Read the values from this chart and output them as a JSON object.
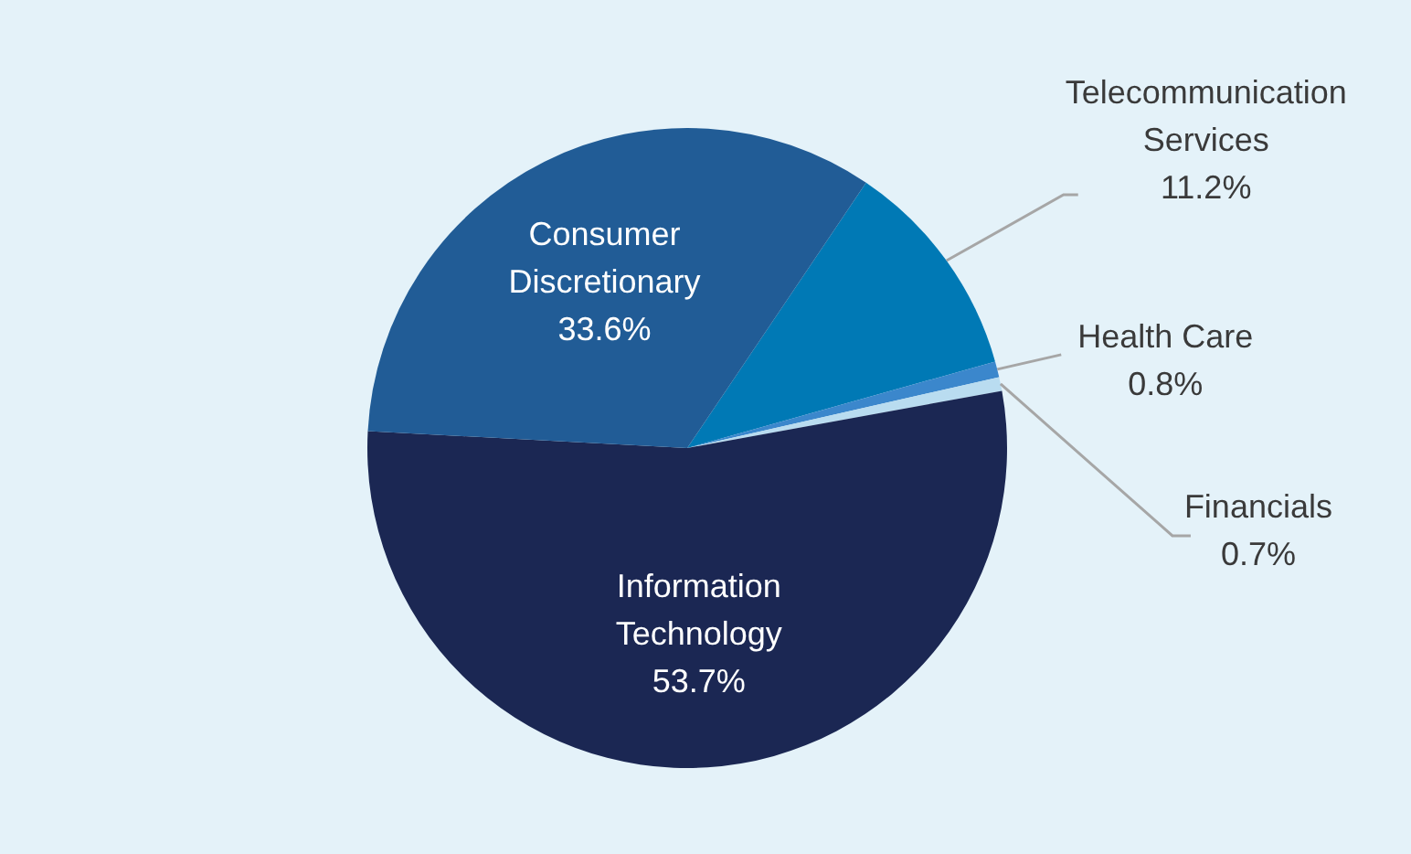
{
  "chart_data": {
    "type": "pie",
    "categories": [
      "Telecommunication Services",
      "Health Care",
      "Financials",
      "Information Technology",
      "Consumer Discretionary"
    ],
    "values": [
      11.2,
      0.8,
      0.7,
      53.7,
      33.6
    ],
    "colors": [
      "#0079b5",
      "#3b87cc",
      "#b9dcf0",
      "#1b2753",
      "#215c96"
    ],
    "value_labels": [
      "11.2%",
      "0.8%",
      "0.7%",
      "53.7%",
      "33.6%"
    ],
    "legend": false
  }
}
